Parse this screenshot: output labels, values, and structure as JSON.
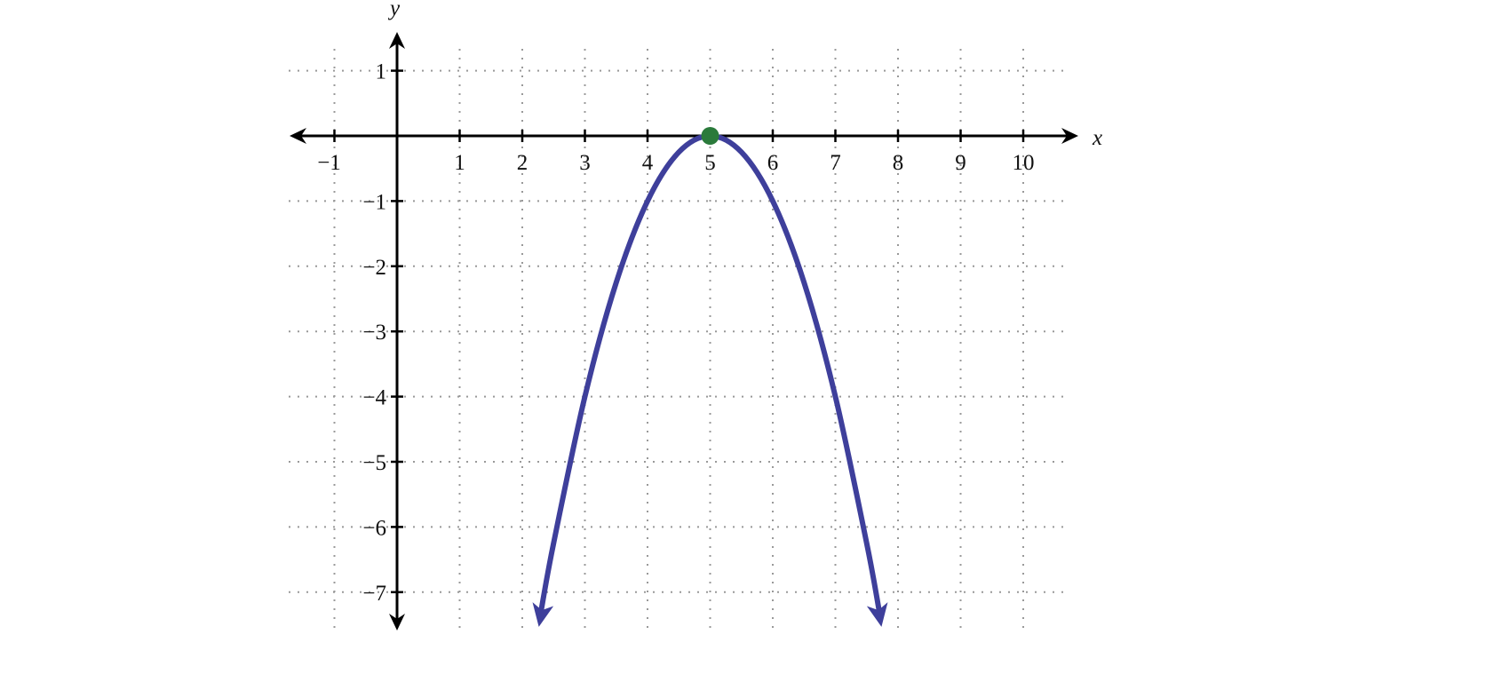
{
  "chart_data": {
    "type": "line",
    "title": "",
    "xlabel": "x",
    "ylabel": "y",
    "xlim": [
      -1.7,
      10.8
    ],
    "ylim": [
      -7.5,
      1.5
    ],
    "grid": true,
    "x_ticks": [
      -1,
      1,
      2,
      3,
      4,
      5,
      6,
      7,
      8,
      9,
      10
    ],
    "x_tick_labels": [
      "−1",
      "1",
      "2",
      "3",
      "4",
      "5",
      "6",
      "7",
      "8",
      "9",
      "10"
    ],
    "y_ticks": [
      1,
      -1,
      -2,
      -3,
      -4,
      -5,
      -6,
      -7
    ],
    "y_tick_labels": [
      "1",
      "−1",
      "−2",
      "−3",
      "−4",
      "−5",
      "−6",
      "−7"
    ],
    "series": [
      {
        "x": [
          2.3,
          2.5,
          3,
          3.5,
          4,
          4.5,
          5,
          5.5,
          6,
          6.5,
          7,
          7.5,
          7.7
        ],
        "y": [
          -7.29,
          -6.25,
          -4,
          -2.25,
          -1,
          -0.25,
          0,
          -0.25,
          -1,
          -2.25,
          -4,
          -6.25,
          -7.29
        ],
        "color": "#3e3f9b",
        "arrows_at_ends": true
      }
    ],
    "points": [
      {
        "x": 5,
        "y": 0,
        "color": "#2a7a3b"
      }
    ]
  }
}
